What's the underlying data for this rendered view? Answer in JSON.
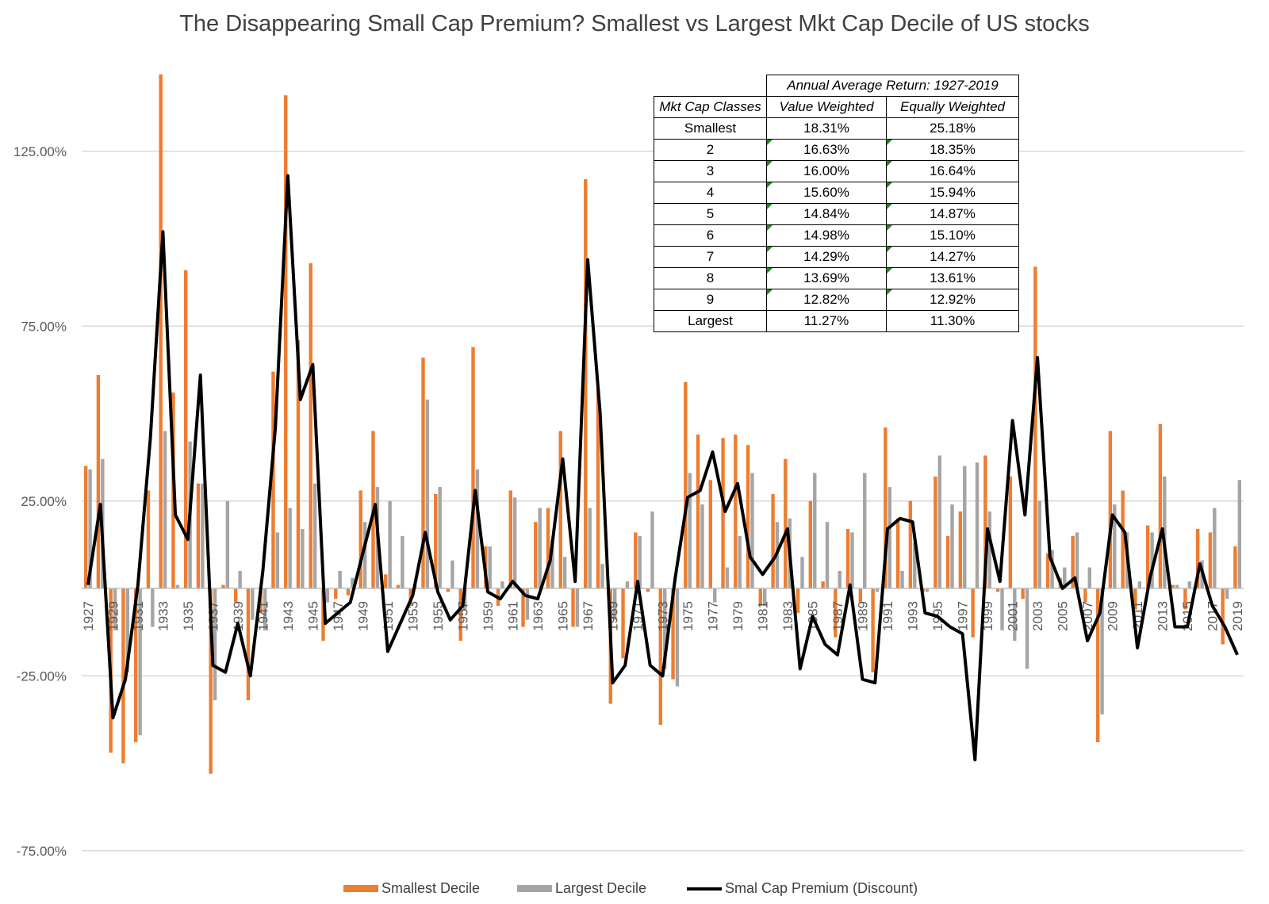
{
  "title": "The Disappearing Small Cap Premium? Smallest vs Largest Mkt Cap Decile of US stocks",
  "legend": {
    "smallest": "Smallest Decile",
    "largest": "Largest Decile",
    "premium": "Smal Cap Premium (Discount)"
  },
  "colors": {
    "smallest": "#ED7D31",
    "largest": "#A5A5A5",
    "premium": "#000000",
    "grid": "#D9D9D9"
  },
  "table": {
    "header_span": "Annual Average Return: 1927-2019",
    "col_headers": [
      "Mkt Cap Classes",
      "Value Weighted",
      "Equally Weighted"
    ],
    "rows": [
      [
        "Smallest",
        "18.31%",
        "25.18%"
      ],
      [
        "2",
        "16.63%",
        "18.35%"
      ],
      [
        "3",
        "16.00%",
        "16.64%"
      ],
      [
        "4",
        "15.60%",
        "15.94%"
      ],
      [
        "5",
        "14.84%",
        "14.87%"
      ],
      [
        "6",
        "14.98%",
        "15.10%"
      ],
      [
        "7",
        "14.29%",
        "14.27%"
      ],
      [
        "8",
        "13.69%",
        "13.61%"
      ],
      [
        "9",
        "12.82%",
        "12.92%"
      ],
      [
        "Largest",
        "11.27%",
        "11.30%"
      ]
    ]
  },
  "chart_data": {
    "type": "bar",
    "title": "The Disappearing Small Cap Premium? Smallest vs Largest Mkt Cap Decile of US stocks",
    "y_ticks": [
      "125.00%",
      "75.00%",
      "25.00%",
      "-25.00%",
      "-75.00%"
    ],
    "y_tick_values": [
      125,
      75,
      25,
      -25,
      -75
    ],
    "ylim": [
      -75,
      148
    ],
    "x": [
      1927,
      1928,
      1929,
      1930,
      1931,
      1932,
      1933,
      1934,
      1935,
      1936,
      1937,
      1938,
      1939,
      1940,
      1941,
      1942,
      1943,
      1944,
      1945,
      1946,
      1947,
      1948,
      1949,
      1950,
      1951,
      1952,
      1953,
      1954,
      1955,
      1956,
      1957,
      1958,
      1959,
      1960,
      1961,
      1962,
      1963,
      1964,
      1965,
      1966,
      1967,
      1968,
      1969,
      1970,
      1971,
      1972,
      1973,
      1974,
      1975,
      1976,
      1977,
      1978,
      1979,
      1980,
      1981,
      1982,
      1983,
      1984,
      1985,
      1986,
      1987,
      1988,
      1989,
      1990,
      1991,
      1992,
      1993,
      1994,
      1995,
      1996,
      1997,
      1998,
      1999,
      2000,
      2001,
      2002,
      2003,
      2004,
      2005,
      2006,
      2007,
      2008,
      2009,
      2010,
      2011,
      2012,
      2013,
      2014,
      2015,
      2016,
      2017,
      2018,
      2019
    ],
    "x_tick_labels": [
      "1927",
      "1929",
      "1931",
      "1933",
      "1935",
      "1937",
      "1939",
      "1941",
      "1943",
      "1945",
      "1947",
      "1949",
      "1951",
      "1953",
      "1955",
      "1957",
      "1959",
      "1961",
      "1963",
      "1965",
      "1967",
      "1969",
      "1971",
      "1973",
      "1975",
      "1977",
      "1979",
      "1981",
      "1983",
      "1985",
      "1987",
      "1989",
      "1991",
      "1993",
      "1995",
      "1997",
      "1999",
      "2001",
      "2003",
      "2005",
      "2007",
      "2009",
      "2011",
      "2013",
      "2015",
      "2017",
      "2019"
    ],
    "grid": true,
    "legend_position": "bottom",
    "series": [
      {
        "name": "Smallest Decile",
        "kind": "bar",
        "values": [
          35,
          61,
          -47,
          -50,
          -44,
          28,
          147,
          56,
          91,
          30,
          -53,
          1,
          -4,
          -32,
          -7,
          62,
          141,
          71,
          93,
          -15,
          -3,
          -2,
          28,
          45,
          4,
          1,
          -5,
          66,
          27,
          -1,
          -15,
          69,
          12,
          -5,
          28,
          -11,
          19,
          23,
          45,
          -11,
          117,
          57,
          -33,
          -20,
          16,
          -1,
          -39,
          -26,
          59,
          44,
          31,
          43,
          44,
          41,
          -5,
          27,
          37,
          -7,
          25,
          2,
          -14,
          17,
          -4,
          -24,
          46,
          20,
          25,
          -1,
          32,
          15,
          22,
          -14,
          38,
          -1,
          32,
          -3,
          92,
          10,
          3,
          15,
          -4,
          -44,
          45,
          28,
          -6,
          18,
          47,
          1,
          -6,
          17,
          16,
          -16,
          12
        ]
      },
      {
        "name": "Largest Decile",
        "kind": "bar",
        "values": [
          34,
          37,
          -12,
          -24,
          -42,
          -11,
          45,
          1,
          42,
          30,
          -32,
          25,
          5,
          -9,
          -12,
          16,
          23,
          17,
          30,
          -4,
          5,
          3,
          19,
          29,
          25,
          15,
          1,
          54,
          29,
          8,
          -6,
          34,
          12,
          2,
          26,
          -9,
          23,
          14,
          9,
          -11,
          23,
          7,
          -9,
          2,
          15,
          22,
          -23,
          -28,
          33,
          24,
          -4,
          6,
          15,
          33,
          -5,
          19,
          20,
          9,
          33,
          19,
          5,
          16,
          33,
          -1,
          29,
          5,
          13,
          -1,
          38,
          24,
          35,
          36,
          22,
          -12,
          -15,
          -23,
          25,
          11,
          6,
          16,
          6,
          -36,
          24,
          16,
          2,
          16,
          32,
          1,
          2,
          8,
          23,
          -3,
          31
        ]
      },
      {
        "name": "Smal Cap Premium (Discount)",
        "kind": "line",
        "values": [
          1,
          24,
          -37,
          -26,
          1,
          43,
          102,
          21,
          14,
          61,
          -22,
          -24,
          -10,
          -25,
          5,
          46,
          118,
          54,
          64,
          -10,
          -7,
          -4,
          10,
          24,
          -18,
          -10,
          -2,
          16,
          -1,
          -9,
          -5,
          28,
          -1,
          -3,
          2,
          -2,
          -3,
          8,
          37,
          2,
          94,
          50,
          -27,
          -22,
          2,
          -22,
          -25,
          3,
          26,
          28,
          39,
          22,
          30,
          9,
          4,
          9,
          17,
          -23,
          -8,
          -16,
          -19,
          1,
          -26,
          -27,
          17,
          20,
          19,
          -7,
          -8,
          -11,
          -13,
          -49,
          17,
          2,
          48,
          21,
          66,
          9,
          0,
          3,
          -15,
          -7,
          21,
          16,
          -17,
          3,
          17,
          -11,
          -11,
          7,
          -5,
          -11,
          -19
        ]
      }
    ]
  }
}
